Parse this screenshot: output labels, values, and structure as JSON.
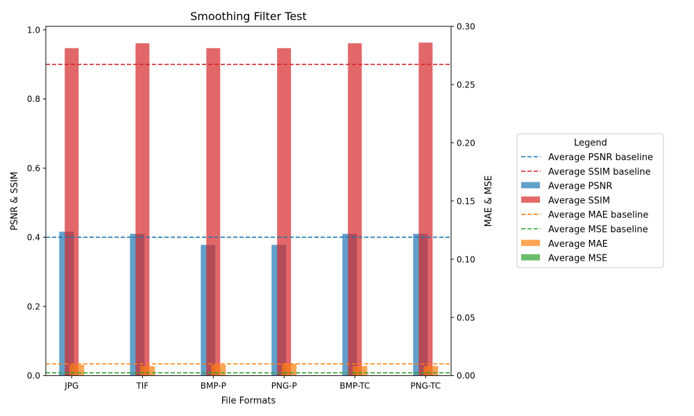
{
  "chart_data": {
    "type": "bar",
    "title": "Smoothing Filter Test",
    "xlabel": "File Formats",
    "ylabel_left": "PSNR & SSIM",
    "ylabel_right": "MAE & MSE",
    "categories": [
      "JPG",
      "TIF",
      "BMP-P",
      "PNG-P",
      "BMP-TC",
      "PNG-TC"
    ],
    "ylim_left": [
      0,
      1.01
    ],
    "ylim_right": [
      0,
      0.3
    ],
    "yticks_left": [
      "0.0",
      "0.2",
      "0.4",
      "0.6",
      "0.8",
      "1.0"
    ],
    "yticks_right": [
      "0.00",
      "0.05",
      "0.10",
      "0.15",
      "0.20",
      "0.25",
      "0.30"
    ],
    "grid": false,
    "series": [
      {
        "name": "Average PSNR",
        "axis": "left",
        "color": "#1f77b4",
        "values": [
          0.416,
          0.41,
          0.378,
          0.378,
          0.41,
          0.41
        ]
      },
      {
        "name": "Average SSIM",
        "axis": "left",
        "color": "#d62728",
        "values": [
          0.947,
          0.961,
          0.947,
          0.947,
          0.961,
          0.963
        ]
      },
      {
        "name": "Average MAE",
        "axis": "right",
        "color": "#ff7f0e",
        "values": [
          0.0093,
          0.0082,
          0.0093,
          0.0101,
          0.0082,
          0.0082
        ]
      },
      {
        "name": "Average MSE",
        "axis": "right",
        "color": "#2ca02c",
        "values": [
          0.0002,
          0.0002,
          0.0002,
          0.0002,
          0.0002,
          0.0002
        ]
      }
    ],
    "baselines": [
      {
        "name": "Average PSNR baseline",
        "axis": "left",
        "color": "#1f77b4",
        "value": 0.4
      },
      {
        "name": "Average SSIM baseline",
        "axis": "left",
        "color": "#d62728",
        "value": 0.9
      },
      {
        "name": "Average MAE baseline",
        "axis": "right",
        "color": "#ff7f0e",
        "value": 0.0101
      },
      {
        "name": "Average MSE baseline",
        "axis": "right",
        "color": "#2ca02c",
        "value": 0.0024
      }
    ],
    "legend": {
      "title": "Legend",
      "placement": "outside-right",
      "entries": [
        {
          "label": "Average PSNR baseline",
          "kind": "line",
          "color": "#1f77b4"
        },
        {
          "label": "Average SSIM baseline",
          "kind": "line",
          "color": "#d62728"
        },
        {
          "label": "Average PSNR",
          "kind": "patch",
          "color": "#1f77b4"
        },
        {
          "label": "Average SSIM",
          "kind": "patch",
          "color": "#d62728"
        },
        {
          "label": "Average MAE baseline",
          "kind": "line",
          "color": "#ff7f0e"
        },
        {
          "label": "Average MSE baseline",
          "kind": "line",
          "color": "#2ca02c"
        },
        {
          "label": "Average MAE",
          "kind": "patch",
          "color": "#ff7f0e"
        },
        {
          "label": "Average MSE",
          "kind": "patch",
          "color": "#2ca02c"
        }
      ]
    }
  }
}
